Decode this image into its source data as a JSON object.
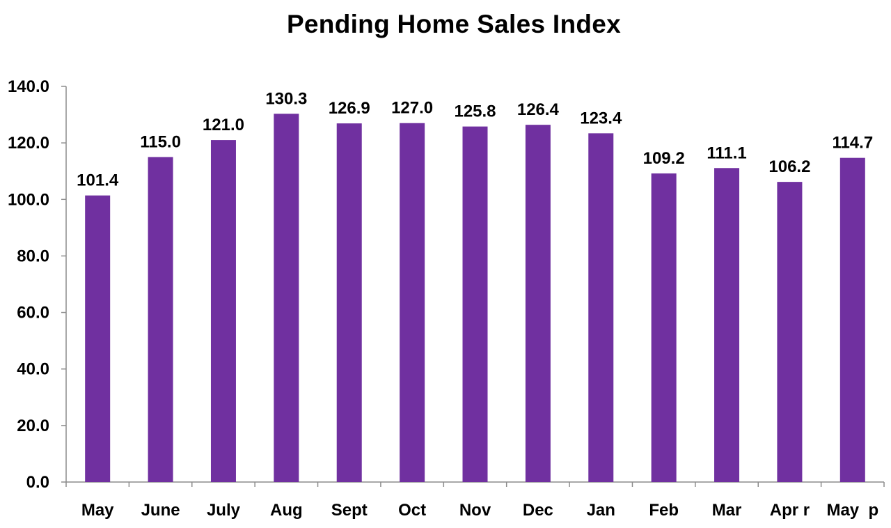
{
  "chart_data": {
    "type": "bar",
    "title": "Pending Home Sales Index",
    "categories": [
      "May",
      "June",
      "July",
      "Aug",
      "Sept",
      "Oct",
      "Nov",
      "Dec",
      "Jan",
      "Feb",
      "Mar",
      "Apr r",
      "May  p"
    ],
    "values": [
      101.4,
      115.0,
      121.0,
      130.3,
      126.9,
      127.0,
      125.8,
      126.4,
      123.4,
      109.2,
      111.1,
      106.2,
      114.7
    ],
    "value_labels": [
      "101.4",
      "115.0",
      "121.0",
      "130.3",
      "126.9",
      "127.0",
      "125.8",
      "126.4",
      "123.4",
      "109.2",
      "111.1",
      "106.2",
      "114.7"
    ],
    "ylim": [
      0,
      140
    ],
    "yticks": [
      "0.0",
      "20.0",
      "40.0",
      "60.0",
      "80.0",
      "100.0",
      "120.0",
      "140.0"
    ],
    "xlabel": "",
    "ylabel": "",
    "grid": false,
    "legend": "none",
    "colors": {
      "bar": "#7030A0",
      "axis": "#8c8c8c",
      "text": "#000000"
    }
  }
}
